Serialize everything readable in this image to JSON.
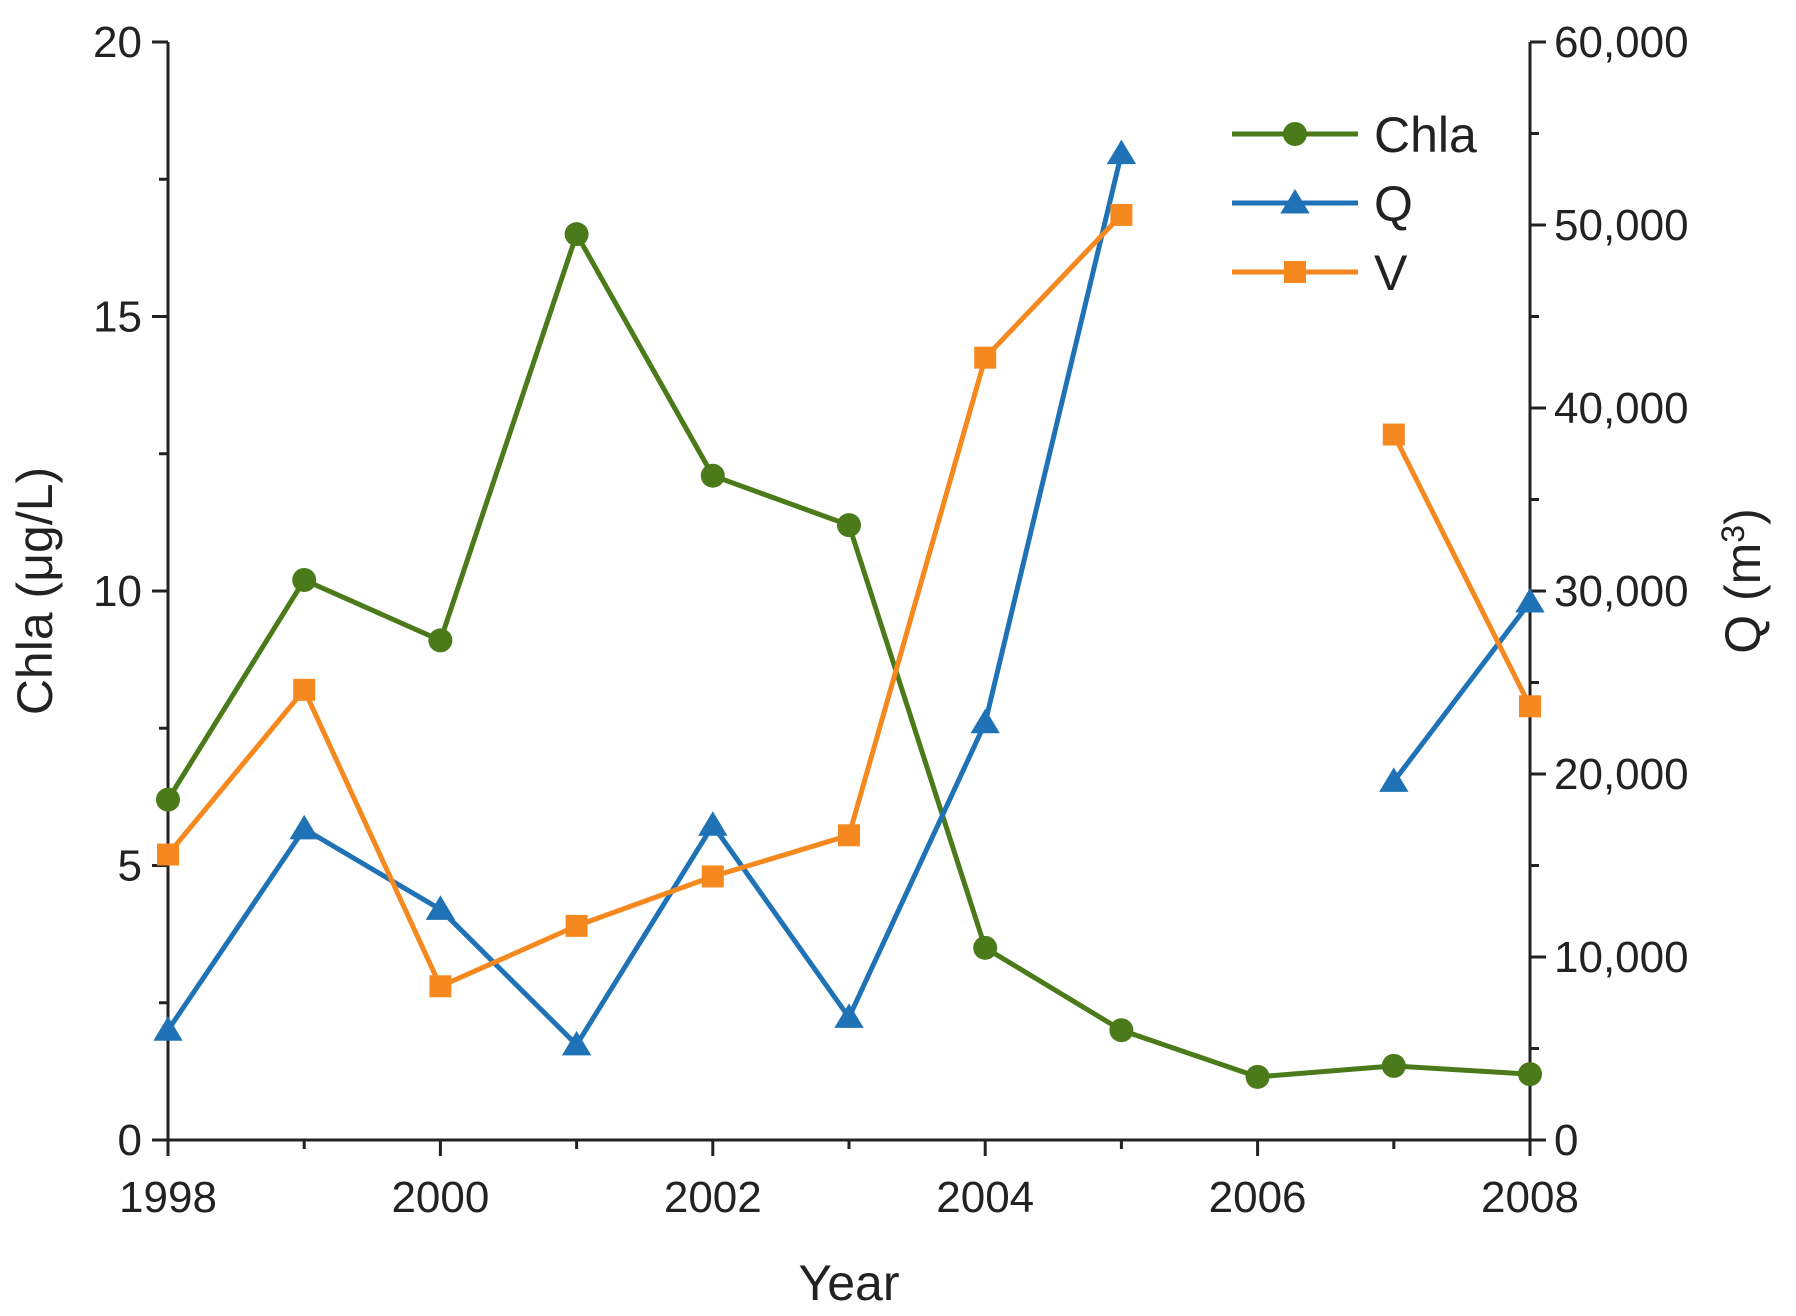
{
  "chart_data": {
    "type": "line",
    "xlabel": "Year",
    "ylabel_left": "Chla (μg/L)",
    "ylabel_right_base": "Q (m",
    "ylabel_right_sup": "3",
    "ylabel_right_tail": ")",
    "xlim": [
      1998,
      2008
    ],
    "ylim_left": [
      0,
      20
    ],
    "ylim_right": [
      0,
      60000
    ],
    "x_ticks": [
      1998,
      2000,
      2002,
      2004,
      2006,
      2008
    ],
    "x_tick_labels": [
      "1998",
      "2000",
      "2002",
      "2004",
      "2006",
      "2008"
    ],
    "y_left_ticks": [
      0,
      5,
      10,
      15,
      20
    ],
    "y_left_tick_labels": [
      "0",
      "5",
      "10",
      "15",
      "20"
    ],
    "y_right_ticks": [
      0,
      10000,
      20000,
      30000,
      40000,
      50000,
      60000
    ],
    "y_right_tick_labels": [
      "0",
      "10,000",
      "20,000",
      "30,000",
      "40,000",
      "50,000",
      "60,000"
    ],
    "grid": false,
    "legend_position": "top-right",
    "series": [
      {
        "name": "Chla",
        "axis": "left",
        "color": "#4a7a19",
        "marker": "circle",
        "points": [
          [
            1998,
            6.2
          ],
          [
            1999,
            10.2
          ],
          [
            2000,
            9.1
          ],
          [
            2001,
            16.5
          ],
          [
            2002,
            12.1
          ],
          [
            2003,
            11.2
          ],
          [
            2004,
            3.5
          ],
          [
            2005,
            2.0
          ],
          [
            2006,
            1.15
          ],
          [
            2007,
            1.35
          ],
          [
            2008,
            1.2
          ]
        ]
      },
      {
        "name": "Q",
        "axis": "right",
        "color": "#1f72b5",
        "marker": "triangle",
        "points": [
          [
            1998,
            6000
          ],
          [
            1999,
            17000
          ],
          [
            2000,
            12600
          ],
          [
            2001,
            5200
          ],
          [
            2002,
            17200
          ],
          [
            2003,
            6700
          ],
          [
            2004,
            22800
          ],
          [
            2005,
            53900
          ],
          [
            2006,
            null
          ],
          [
            2007,
            19600
          ],
          [
            2008,
            29400
          ]
        ]
      },
      {
        "name": "V",
        "axis": "left",
        "color": "#f5891f",
        "marker": "square",
        "points": [
          [
            1998,
            5.2
          ],
          [
            1999,
            8.2
          ],
          [
            2000,
            2.8
          ],
          [
            2001,
            3.9
          ],
          [
            2002,
            4.8
          ],
          [
            2003,
            5.55
          ],
          [
            2004,
            14.25
          ],
          [
            2005,
            16.85
          ],
          [
            2006,
            null
          ],
          [
            2007,
            12.85
          ],
          [
            2008,
            7.9
          ]
        ]
      }
    ]
  }
}
